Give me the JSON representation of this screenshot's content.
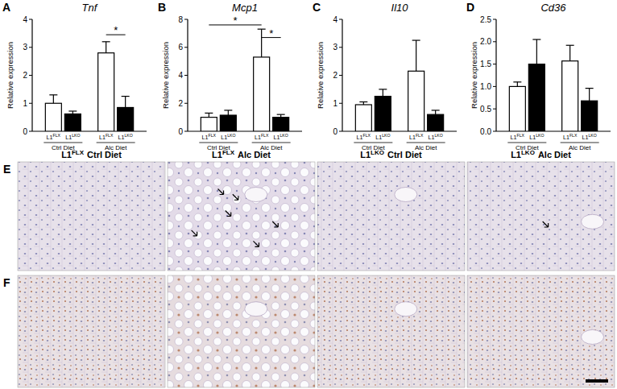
{
  "chart_data": [
    {
      "type": "bar",
      "title": "Tnf",
      "y_label": "Relative expression",
      "categories": [
        "Ctrl Diet",
        "Alc Diet"
      ],
      "series": [
        {
          "name": "L1FLX",
          "color": "#ffffff",
          "values": [
            1.0,
            2.8
          ],
          "errors": [
            0.3,
            0.4
          ]
        },
        {
          "name": "L1LKO",
          "color": "#000000",
          "values": [
            0.62,
            0.85
          ],
          "errors": [
            0.1,
            0.4
          ]
        }
      ],
      "ylim": [
        0,
        4
      ],
      "yticks": [
        0,
        1,
        2,
        3,
        4
      ],
      "grid": false,
      "annotations": [
        {
          "text": "A"
        },
        {
          "text": "*",
          "from": 2,
          "to": 3,
          "y": 3.45
        }
      ]
    },
    {
      "type": "bar",
      "title": "Mcp1",
      "y_label": "Relative expression",
      "categories": [
        "Ctrl Diet",
        "Alc Diet"
      ],
      "series": [
        {
          "name": "L1FLX",
          "color": "#ffffff",
          "values": [
            1.0,
            5.3
          ],
          "errors": [
            0.3,
            2.0
          ]
        },
        {
          "name": "L1LKO",
          "color": "#000000",
          "values": [
            1.15,
            1.0
          ],
          "errors": [
            0.35,
            0.2
          ]
        }
      ],
      "ylim": [
        0,
        8
      ],
      "yticks": [
        0,
        2,
        4,
        6,
        8
      ],
      "grid": false,
      "annotations": [
        {
          "text": "B"
        },
        {
          "text": "*",
          "from": 0,
          "to": 2,
          "y": 7.6
        },
        {
          "text": "*",
          "from": 2,
          "to": 3,
          "y": 6.7
        }
      ]
    },
    {
      "type": "bar",
      "title": "Il10",
      "y_label": "Relative expression",
      "categories": [
        "Ctrl Diet",
        "Alc Diet"
      ],
      "series": [
        {
          "name": "L1FLX",
          "color": "#ffffff",
          "values": [
            0.95,
            2.15
          ],
          "errors": [
            0.1,
            1.1
          ]
        },
        {
          "name": "L1LKO",
          "color": "#000000",
          "values": [
            1.25,
            0.6
          ],
          "errors": [
            0.25,
            0.15
          ]
        }
      ],
      "ylim": [
        0,
        4
      ],
      "yticks": [
        0,
        1,
        2,
        3,
        4
      ],
      "grid": false,
      "annotations": [
        {
          "text": "C"
        }
      ]
    },
    {
      "type": "bar",
      "title": "Cd36",
      "y_label": "Relative expression",
      "categories": [
        "Ctrl Diet",
        "Alc Diet"
      ],
      "series": [
        {
          "name": "L1FLX",
          "color": "#ffffff",
          "values": [
            1.0,
            1.57
          ],
          "errors": [
            0.1,
            0.35
          ]
        },
        {
          "name": "L1LKO",
          "color": "#000000",
          "values": [
            1.5,
            0.68
          ],
          "errors": [
            0.55,
            0.28
          ]
        }
      ],
      "ylim": [
        0,
        2.5
      ],
      "yticks": [
        {
          "value": 0,
          "label": "0.0"
        },
        {
          "value": 0.5,
          "label": "0.5"
        },
        {
          "value": 1,
          "label": "1.0"
        },
        {
          "value": 1.5,
          "label": "1.5"
        },
        {
          "value": 2,
          "label": "2.0"
        },
        {
          "value": 2.5,
          "label": "2.5"
        }
      ],
      "grid": false,
      "annotations": [
        {
          "text": "D"
        }
      ]
    }
  ],
  "micrographs": {
    "rows": [
      {
        "label": "E"
      },
      {
        "label": "F"
      }
    ],
    "columns": [
      {
        "genotype": "L1FLX",
        "diet": "Ctrl Diet"
      },
      {
        "genotype": "L1FLX",
        "diet": "Alc Diet"
      },
      {
        "genotype": "L1LKO",
        "diet": "Ctrl Diet"
      },
      {
        "genotype": "L1LKO",
        "diet": "Alc Diet"
      }
    ]
  }
}
